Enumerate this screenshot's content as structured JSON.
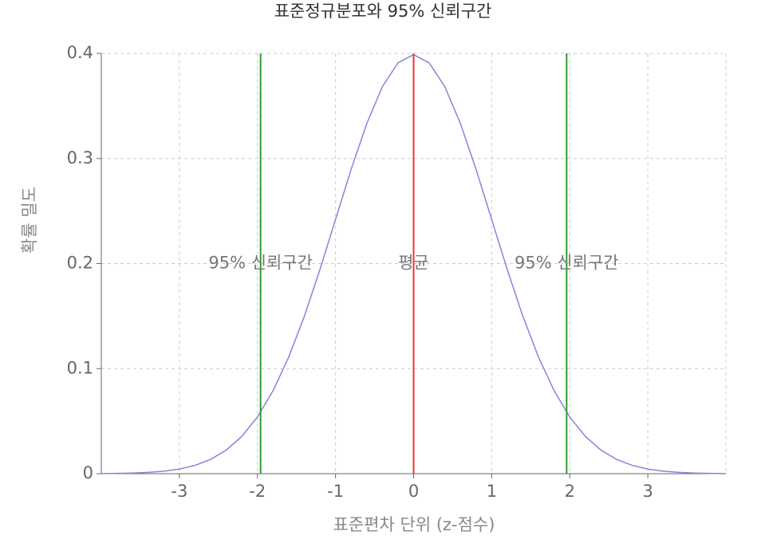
{
  "chart_data": {
    "type": "line",
    "title": "표준정규분포와 95% 신뢰구간",
    "xlabel": "표준편차 단위 (z-점수)",
    "ylabel": "확률 밀도",
    "x": [
      -4,
      -3.8,
      -3.6,
      -3.4,
      -3.2,
      -3,
      -2.8,
      -2.6,
      -2.4,
      -2.2,
      -2,
      -1.8,
      -1.6,
      -1.4,
      -1.2,
      -1,
      -0.8,
      -0.6,
      -0.4,
      -0.2,
      0,
      0.2,
      0.4,
      0.6,
      0.8,
      1,
      1.2,
      1.4,
      1.6,
      1.8,
      2,
      2.2,
      2.4,
      2.6,
      2.8,
      3,
      3.2,
      3.4,
      3.6,
      3.8,
      4
    ],
    "values": [
      0.0001,
      0.0003,
      0.0006,
      0.0012,
      0.0024,
      0.0044,
      0.0079,
      0.0136,
      0.0224,
      0.0355,
      0.054,
      0.079,
      0.1109,
      0.1497,
      0.1942,
      0.242,
      0.2897,
      0.3332,
      0.3683,
      0.391,
      0.3989,
      0.391,
      0.3683,
      0.3332,
      0.2897,
      0.242,
      0.1942,
      0.1497,
      0.1109,
      0.079,
      0.054,
      0.0355,
      0.0224,
      0.0136,
      0.0079,
      0.0044,
      0.0024,
      0.0012,
      0.0006,
      0.0003,
      0.0001
    ],
    "color": "#8884d8",
    "annotations": [
      {
        "x": -1.96,
        "y": 0.2,
        "label": "95% 신뢰구간",
        "color": "#2e9a2e"
      },
      {
        "x": 0,
        "y": 0.2,
        "label": "평균",
        "color": "#e53935"
      },
      {
        "x": 1.96,
        "y": 0.2,
        "label": "95% 신뢰구간",
        "color": "#2e9a2e"
      }
    ],
    "xlim": [
      -4,
      4
    ],
    "ylim": [
      0,
      0.4
    ],
    "xticks": [
      -3,
      -2,
      -1,
      0,
      1,
      2,
      3
    ],
    "yticks": [
      0,
      0.1,
      0.2,
      0.3,
      0.4
    ],
    "grid": true
  }
}
